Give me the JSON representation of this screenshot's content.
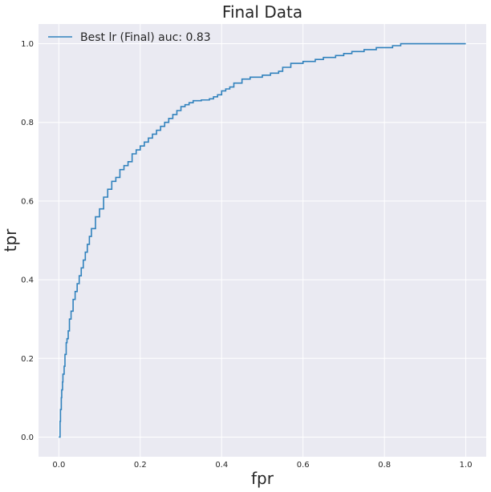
{
  "chart_data": {
    "type": "line",
    "title": "Final Data",
    "xlabel": "fpr",
    "ylabel": "tpr",
    "xlim": [
      -0.05,
      1.05
    ],
    "ylim": [
      -0.05,
      1.05
    ],
    "xticks": [
      "0.0",
      "0.2",
      "0.4",
      "0.6",
      "0.8",
      "1.0"
    ],
    "yticks": [
      "0.0",
      "0.2",
      "0.4",
      "0.6",
      "0.8",
      "1.0"
    ],
    "grid": true,
    "background": "#eaeaf2",
    "legend_position": "top-left",
    "series": [
      {
        "name": "Best lr (Final) auc: 0.83",
        "color": "#3182bd",
        "x": [
          0.0,
          0.003,
          0.004,
          0.006,
          0.007,
          0.009,
          0.01,
          0.013,
          0.015,
          0.018,
          0.02,
          0.023,
          0.026,
          0.03,
          0.035,
          0.04,
          0.045,
          0.05,
          0.055,
          0.06,
          0.065,
          0.07,
          0.075,
          0.08,
          0.09,
          0.1,
          0.11,
          0.12,
          0.13,
          0.14,
          0.15,
          0.16,
          0.17,
          0.18,
          0.19,
          0.2,
          0.21,
          0.22,
          0.23,
          0.24,
          0.25,
          0.26,
          0.27,
          0.28,
          0.29,
          0.3,
          0.31,
          0.32,
          0.33,
          0.35,
          0.37,
          0.38,
          0.39,
          0.4,
          0.41,
          0.42,
          0.43,
          0.45,
          0.47,
          0.5,
          0.52,
          0.54,
          0.55,
          0.57,
          0.6,
          0.63,
          0.65,
          0.68,
          0.7,
          0.72,
          0.75,
          0.78,
          0.8,
          0.82,
          0.84,
          0.85,
          0.87,
          0.9,
          0.93,
          0.96,
          0.98,
          1.0
        ],
        "y": [
          0.0,
          0.04,
          0.07,
          0.1,
          0.12,
          0.14,
          0.16,
          0.18,
          0.21,
          0.24,
          0.25,
          0.27,
          0.3,
          0.32,
          0.35,
          0.37,
          0.39,
          0.41,
          0.43,
          0.45,
          0.47,
          0.49,
          0.51,
          0.53,
          0.56,
          0.58,
          0.61,
          0.63,
          0.65,
          0.66,
          0.68,
          0.69,
          0.7,
          0.72,
          0.73,
          0.74,
          0.75,
          0.76,
          0.77,
          0.78,
          0.79,
          0.8,
          0.81,
          0.82,
          0.83,
          0.84,
          0.845,
          0.85,
          0.855,
          0.857,
          0.86,
          0.865,
          0.87,
          0.88,
          0.885,
          0.89,
          0.9,
          0.91,
          0.915,
          0.92,
          0.925,
          0.93,
          0.94,
          0.95,
          0.955,
          0.96,
          0.965,
          0.97,
          0.975,
          0.98,
          0.985,
          0.99,
          0.99,
          0.995,
          1.0,
          1.0,
          1.0,
          1.0,
          1.0,
          1.0,
          1.0,
          1.0
        ]
      }
    ]
  }
}
